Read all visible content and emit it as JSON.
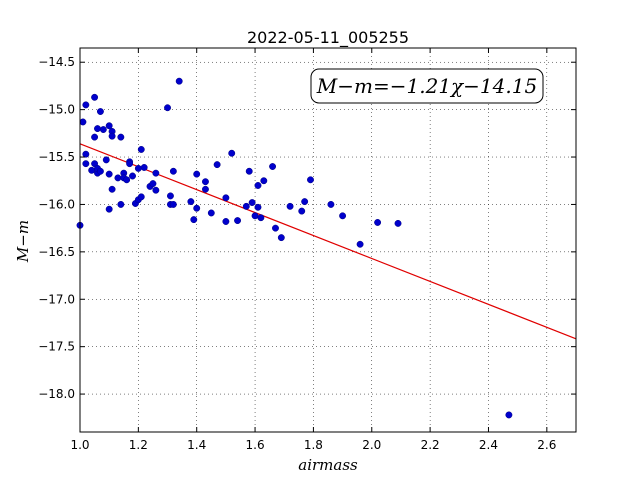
{
  "chart_data": {
    "type": "scatter",
    "title": "2022-05-11_005255",
    "xlabel": "airmass",
    "ylabel": "M−m",
    "xlim": [
      1.0,
      2.7
    ],
    "ylim": [
      -18.4,
      -14.35
    ],
    "y_inverted": true,
    "grid": true,
    "x_ticks": [
      "1.0",
      "1.2",
      "1.4",
      "1.6",
      "1.8",
      "2.0",
      "2.2",
      "2.4",
      "2.6"
    ],
    "y_ticks": [
      "−14.5",
      "−15.0",
      "−15.5",
      "−16.0",
      "−16.5",
      "−17.0",
      "−17.5",
      "−18.0"
    ],
    "annotation": "M−m=−1.21χ−14.15",
    "point_color": "#0000cc",
    "fit_color": "#e00000",
    "fit": {
      "slope": -1.21,
      "intercept": -14.15
    },
    "points": [
      [
        1.0,
        -16.22
      ],
      [
        1.01,
        -15.13
      ],
      [
        1.02,
        -14.95
      ],
      [
        1.02,
        -15.47
      ],
      [
        1.02,
        -15.57
      ],
      [
        1.04,
        -15.64
      ],
      [
        1.05,
        -14.87
      ],
      [
        1.05,
        -15.29
      ],
      [
        1.05,
        -15.57
      ],
      [
        1.06,
        -15.67
      ],
      [
        1.06,
        -15.62
      ],
      [
        1.06,
        -15.2
      ],
      [
        1.07,
        -15.02
      ],
      [
        1.07,
        -15.65
      ],
      [
        1.08,
        -15.21
      ],
      [
        1.09,
        -15.53
      ],
      [
        1.1,
        -16.05
      ],
      [
        1.1,
        -15.68
      ],
      [
        1.1,
        -15.17
      ],
      [
        1.11,
        -15.23
      ],
      [
        1.11,
        -15.28
      ],
      [
        1.11,
        -15.84
      ],
      [
        1.13,
        -15.72
      ],
      [
        1.14,
        -15.29
      ],
      [
        1.14,
        -16.0
      ],
      [
        1.15,
        -15.67
      ],
      [
        1.15,
        -15.72
      ],
      [
        1.16,
        -15.74
      ],
      [
        1.17,
        -15.55
      ],
      [
        1.17,
        -15.57
      ],
      [
        1.18,
        -15.7
      ],
      [
        1.19,
        -15.99
      ],
      [
        1.2,
        -15.95
      ],
      [
        1.2,
        -15.62
      ],
      [
        1.21,
        -15.42
      ],
      [
        1.21,
        -15.92
      ],
      [
        1.22,
        -15.61
      ],
      [
        1.24,
        -15.81
      ],
      [
        1.25,
        -15.78
      ],
      [
        1.26,
        -15.85
      ],
      [
        1.26,
        -15.67
      ],
      [
        1.3,
        -14.98
      ],
      [
        1.31,
        -15.91
      ],
      [
        1.31,
        -16.0
      ],
      [
        1.32,
        -16.0
      ],
      [
        1.32,
        -15.65
      ],
      [
        1.34,
        -14.7
      ],
      [
        1.38,
        -15.97
      ],
      [
        1.39,
        -16.16
      ],
      [
        1.4,
        -15.68
      ],
      [
        1.4,
        -16.04
      ],
      [
        1.43,
        -15.76
      ],
      [
        1.43,
        -15.84
      ],
      [
        1.45,
        -16.09
      ],
      [
        1.47,
        -15.58
      ],
      [
        1.5,
        -16.18
      ],
      [
        1.5,
        -15.93
      ],
      [
        1.52,
        -15.46
      ],
      [
        1.54,
        -16.17
      ],
      [
        1.57,
        -16.02
      ],
      [
        1.58,
        -15.65
      ],
      [
        1.59,
        -15.98
      ],
      [
        1.6,
        -16.12
      ],
      [
        1.61,
        -15.8
      ],
      [
        1.61,
        -16.03
      ],
      [
        1.62,
        -16.14
      ],
      [
        1.63,
        -15.75
      ],
      [
        1.66,
        -15.6
      ],
      [
        1.67,
        -16.25
      ],
      [
        1.69,
        -16.35
      ],
      [
        1.72,
        -16.02
      ],
      [
        1.76,
        -16.07
      ],
      [
        1.77,
        -15.97
      ],
      [
        1.79,
        -15.74
      ],
      [
        1.86,
        -16.0
      ],
      [
        1.9,
        -16.12
      ],
      [
        1.96,
        -16.42
      ],
      [
        2.02,
        -16.19
      ],
      [
        2.09,
        -16.2
      ],
      [
        2.47,
        -18.22
      ]
    ]
  }
}
